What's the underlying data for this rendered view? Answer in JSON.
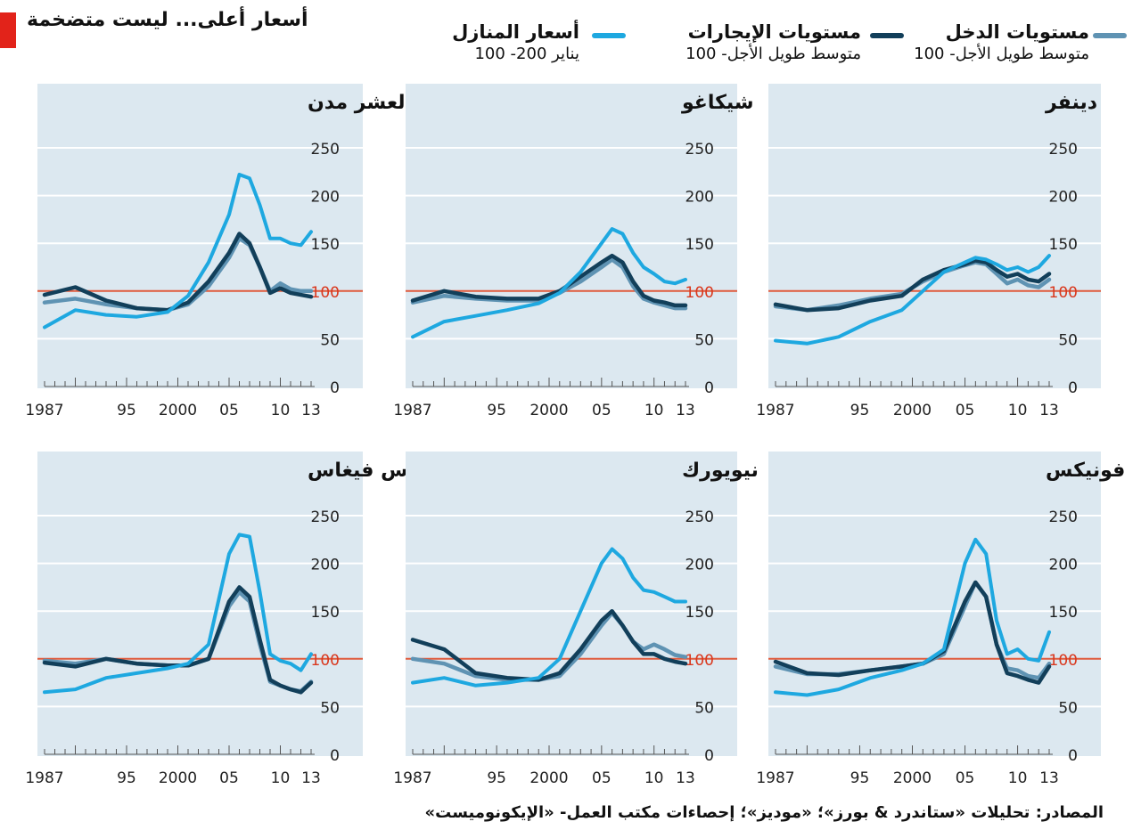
{
  "header": {
    "title": "أسعار أعلى... ليست متضخمة"
  },
  "legend": [
    {
      "label": "أسعار المنازل",
      "sub": "يناير 200- 100",
      "color": "#1ea8e0"
    },
    {
      "label": "مستويات الإيجارات",
      "sub": "متوسط طويل الأجل- 100",
      "color": "#123f5a"
    },
    {
      "label": "مستويات الدخل",
      "sub": "متوسط طويل الأجل- 100",
      "color": "#5f93b3"
    }
  ],
  "footer": "المصادر: تحليلات «ستاندرد & بورز»؛ «موديز»؛ إحصاءات مكتب العمل- «الإيكونوميست»",
  "chart_data": [
    {
      "type": "line",
      "title": "المؤشر المركب لعشر مدن",
      "x": [
        1987,
        1990,
        1993,
        1996,
        1999,
        2001,
        2003,
        2005,
        2006,
        2007,
        2008,
        2009,
        2010,
        2011,
        2012,
        2013
      ],
      "ylim": [
        0,
        250
      ],
      "yticks": [
        0,
        50,
        100,
        150,
        200,
        250
      ],
      "xticks": [
        "1987",
        "95",
        "2000",
        "05",
        "10",
        "13"
      ],
      "series": [
        {
          "name": "أسعار المنازل",
          "values": [
            62,
            80,
            75,
            73,
            78,
            95,
            130,
            180,
            222,
            218,
            190,
            155,
            155,
            150,
            148,
            162
          ]
        },
        {
          "name": "مستويات الإيجارات",
          "values": [
            96,
            104,
            90,
            82,
            80,
            88,
            110,
            140,
            160,
            150,
            125,
            98,
            103,
            98,
            96,
            94
          ]
        },
        {
          "name": "مستويات الدخل",
          "values": [
            88,
            92,
            86,
            82,
            80,
            86,
            105,
            135,
            155,
            148,
            125,
            100,
            108,
            102,
            100,
            100
          ]
        }
      ]
    },
    {
      "type": "line",
      "title": "شيكاغو",
      "x": [
        1987,
        1990,
        1993,
        1996,
        1999,
        2001,
        2003,
        2005,
        2006,
        2007,
        2008,
        2009,
        2010,
        2011,
        2012,
        2013
      ],
      "ylim": [
        0,
        250
      ],
      "yticks": [
        0,
        50,
        100,
        150,
        200,
        250
      ],
      "xticks": [
        "1987",
        "95",
        "2000",
        "05",
        "10",
        "13"
      ],
      "series": [
        {
          "name": "أسعار المنازل",
          "values": [
            52,
            68,
            74,
            80,
            87,
            98,
            120,
            150,
            165,
            160,
            140,
            125,
            118,
            110,
            108,
            112
          ]
        },
        {
          "name": "مستويات الإيجارات",
          "values": [
            90,
            100,
            94,
            92,
            92,
            100,
            115,
            130,
            137,
            130,
            110,
            95,
            90,
            88,
            85,
            85
          ]
        },
        {
          "name": "مستويات الدخل",
          "values": [
            88,
            95,
            92,
            90,
            90,
            98,
            110,
            125,
            133,
            125,
            105,
            92,
            88,
            85,
            82,
            82
          ]
        }
      ]
    },
    {
      "type": "line",
      "title": "دينفر",
      "x": [
        1987,
        1990,
        1993,
        1996,
        1999,
        2001,
        2003,
        2005,
        2006,
        2007,
        2008,
        2009,
        2010,
        2011,
        2012,
        2013
      ],
      "ylim": [
        0,
        250
      ],
      "yticks": [
        0,
        50,
        100,
        150,
        200,
        250
      ],
      "xticks": [
        "1987",
        "95",
        "2000",
        "05",
        "10",
        "13"
      ],
      "series": [
        {
          "name": "أسعار المنازل",
          "values": [
            48,
            45,
            52,
            68,
            80,
            100,
            120,
            130,
            135,
            133,
            128,
            122,
            125,
            120,
            125,
            137
          ]
        },
        {
          "name": "مستويات الإيجارات",
          "values": [
            86,
            80,
            82,
            90,
            95,
            112,
            122,
            128,
            132,
            130,
            122,
            115,
            118,
            112,
            110,
            118
          ]
        },
        {
          "name": "مستويات الدخل",
          "values": [
            84,
            80,
            85,
            92,
            97,
            110,
            120,
            127,
            130,
            128,
            118,
            108,
            112,
            106,
            104,
            112
          ]
        }
      ]
    },
    {
      "type": "line",
      "title": "لاس فيغاس",
      "x": [
        1987,
        1990,
        1993,
        1996,
        1999,
        2001,
        2003,
        2005,
        2006,
        2007,
        2008,
        2009,
        2010,
        2011,
        2012,
        2013
      ],
      "ylim": [
        0,
        250
      ],
      "yticks": [
        0,
        50,
        100,
        150,
        200,
        250
      ],
      "xticks": [
        "1987",
        "95",
        "2000",
        "05",
        "10",
        "13"
      ],
      "series": [
        {
          "name": "أسعار المنازل",
          "values": [
            65,
            68,
            80,
            85,
            90,
            95,
            115,
            210,
            230,
            228,
            170,
            105,
            98,
            95,
            88,
            105
          ]
        },
        {
          "name": "مستويات الإيجارات",
          "values": [
            96,
            92,
            100,
            95,
            93,
            93,
            100,
            160,
            175,
            165,
            120,
            78,
            72,
            68,
            65,
            75
          ]
        },
        {
          "name": "مستويات الدخل",
          "values": [
            98,
            95,
            100,
            95,
            93,
            93,
            100,
            155,
            170,
            160,
            115,
            76,
            72,
            68,
            66,
            76
          ]
        }
      ]
    },
    {
      "type": "line",
      "title": "نيويورك",
      "x": [
        1987,
        1990,
        1993,
        1996,
        1999,
        2001,
        2003,
        2005,
        2006,
        2007,
        2008,
        2009,
        2010,
        2011,
        2012,
        2013
      ],
      "ylim": [
        0,
        250
      ],
      "yticks": [
        0,
        50,
        100,
        150,
        200,
        250
      ],
      "xticks": [
        "1987",
        "95",
        "2000",
        "05",
        "10",
        "13"
      ],
      "series": [
        {
          "name": "أسعار المنازل",
          "values": [
            75,
            80,
            72,
            75,
            80,
            100,
            150,
            200,
            215,
            205,
            185,
            172,
            170,
            165,
            160,
            160
          ]
        },
        {
          "name": "مستويات الإيجارات",
          "values": [
            120,
            110,
            85,
            80,
            78,
            85,
            110,
            140,
            150,
            135,
            118,
            105,
            105,
            100,
            97,
            95
          ]
        },
        {
          "name": "مستويات الدخل",
          "values": [
            100,
            95,
            82,
            78,
            78,
            82,
            105,
            135,
            148,
            135,
            118,
            110,
            115,
            110,
            104,
            102
          ]
        }
      ]
    },
    {
      "type": "line",
      "title": "فونيكس",
      "x": [
        1987,
        1990,
        1993,
        1996,
        1999,
        2001,
        2003,
        2005,
        2006,
        2007,
        2008,
        2009,
        2010,
        2011,
        2012,
        2013
      ],
      "ylim": [
        0,
        250
      ],
      "yticks": [
        0,
        50,
        100,
        150,
        200,
        250
      ],
      "xticks": [
        "1987",
        "95",
        "2000",
        "05",
        "10",
        "13"
      ],
      "series": [
        {
          "name": "أسعار المنازل",
          "values": [
            65,
            62,
            68,
            80,
            88,
            95,
            110,
            200,
            225,
            210,
            140,
            105,
            110,
            100,
            98,
            128
          ]
        },
        {
          "name": "مستويات الإيجارات",
          "values": [
            97,
            85,
            83,
            88,
            92,
            95,
            108,
            160,
            180,
            165,
            115,
            85,
            82,
            78,
            75,
            92
          ]
        },
        {
          "name": "مستويات الدخل",
          "values": [
            92,
            84,
            84,
            88,
            92,
            95,
            105,
            155,
            180,
            165,
            115,
            90,
            88,
            82,
            80,
            95
          ]
        }
      ]
    }
  ]
}
